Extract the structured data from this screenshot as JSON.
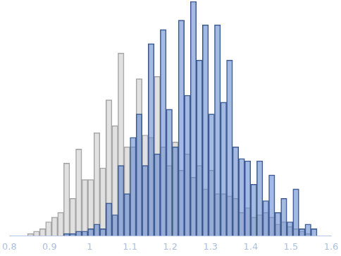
{
  "chart_data": {
    "type": "histogram",
    "bins": [
      0.83,
      0.845,
      0.86,
      0.875,
      0.89,
      0.905,
      0.92,
      0.935,
      0.95,
      0.965,
      0.98,
      0.995,
      1.01,
      1.025,
      1.04,
      1.055,
      1.07,
      1.085,
      1.1,
      1.115,
      1.13,
      1.145,
      1.16,
      1.175,
      1.19,
      1.205,
      1.22,
      1.235,
      1.25,
      1.265,
      1.28,
      1.295,
      1.31,
      1.325,
      1.34,
      1.355,
      1.37,
      1.385,
      1.4,
      1.415,
      1.43,
      1.445,
      1.46,
      1.475,
      1.49,
      1.505,
      1.52,
      1.535,
      1.55,
      1.565
    ],
    "series": [
      {
        "color": "#c8c8c8",
        "values": [
          0,
          1,
          2,
          3,
          6,
          8,
          10,
          31,
          16,
          37,
          24,
          24,
          44,
          29,
          58,
          47,
          78,
          38,
          38,
          67,
          43,
          42,
          68,
          38,
          30,
          40,
          28,
          35,
          25,
          30,
          20,
          28,
          18,
          18,
          17,
          16,
          10,
          12,
          8,
          9,
          10,
          8,
          5,
          6,
          4,
          3,
          2,
          1,
          0
        ]
      },
      {
        "color": "#5a82cc",
        "values": [
          0,
          0,
          0,
          0,
          0,
          0,
          0,
          1,
          1,
          2,
          2,
          3,
          5,
          3,
          14,
          9,
          30,
          18,
          42,
          52,
          30,
          82,
          35,
          88,
          54,
          38,
          92,
          60,
          100,
          75,
          90,
          52,
          90,
          57,
          75,
          38,
          33,
          32,
          22,
          32,
          15,
          26,
          10,
          16,
          6,
          20,
          3,
          5,
          3
        ]
      }
    ],
    "xlim": [
      0.8,
      1.6
    ],
    "xticks": [
      0.8,
      0.9,
      1,
      1.1,
      1.2,
      1.3,
      1.4,
      1.5,
      1.6
    ],
    "ylim": [
      0,
      100
    ],
    "grid": false,
    "tick_labels": "x"
  }
}
